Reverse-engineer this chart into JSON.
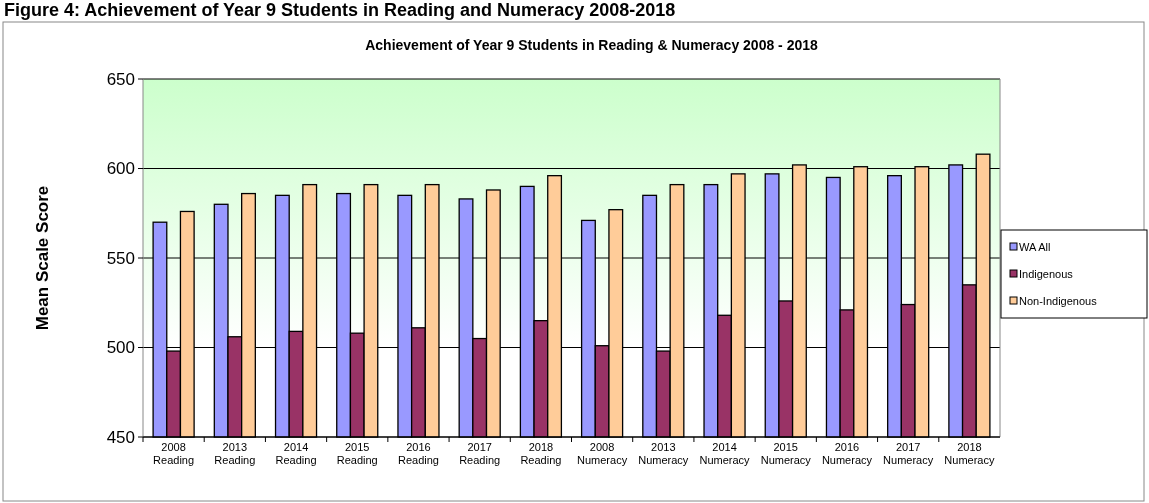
{
  "chart_data": {
    "type": "bar",
    "title": "Achievement of Year 9 Students in Reading & Numeracy 2008 - 2018",
    "annotations": [
      "Figure 4:  Achievement of Year 9 Students in Reading and Numeracy 2008-2018"
    ],
    "ylabel": "Mean Scale Score",
    "categories": [
      "2008 Reading",
      "2013 Reading",
      "2014 Reading",
      "2015 Reading",
      "2016 Reading",
      "2017 Reading",
      "2018 Reading",
      "2008 Numeracy",
      "2013 Numeracy",
      "2014 Numeracy",
      "2015 Numeracy",
      "2016 Numeracy",
      "2017 Numeracy",
      "2018 Numeracy"
    ],
    "series": [
      {
        "name": "WA All",
        "color": "#9999ff",
        "values": [
          570,
          580,
          585,
          586,
          585,
          583,
          590,
          571,
          585,
          591,
          597,
          595,
          596,
          602
        ]
      },
      {
        "name": "Indigenous",
        "color": "#993366",
        "values": [
          498,
          506,
          509,
          508,
          511,
          505,
          515,
          501,
          498,
          518,
          526,
          521,
          524,
          535
        ]
      },
      {
        "name": "Non-Indigenous",
        "color": "#ffcc99",
        "values": [
          576,
          586,
          591,
          591,
          591,
          588,
          596,
          577,
          591,
          597,
          602,
          601,
          601,
          608
        ]
      }
    ],
    "ylim": [
      450,
      650
    ],
    "yticks": [
      450,
      500,
      550,
      600,
      650
    ],
    "grid": "y",
    "legend": "right"
  }
}
